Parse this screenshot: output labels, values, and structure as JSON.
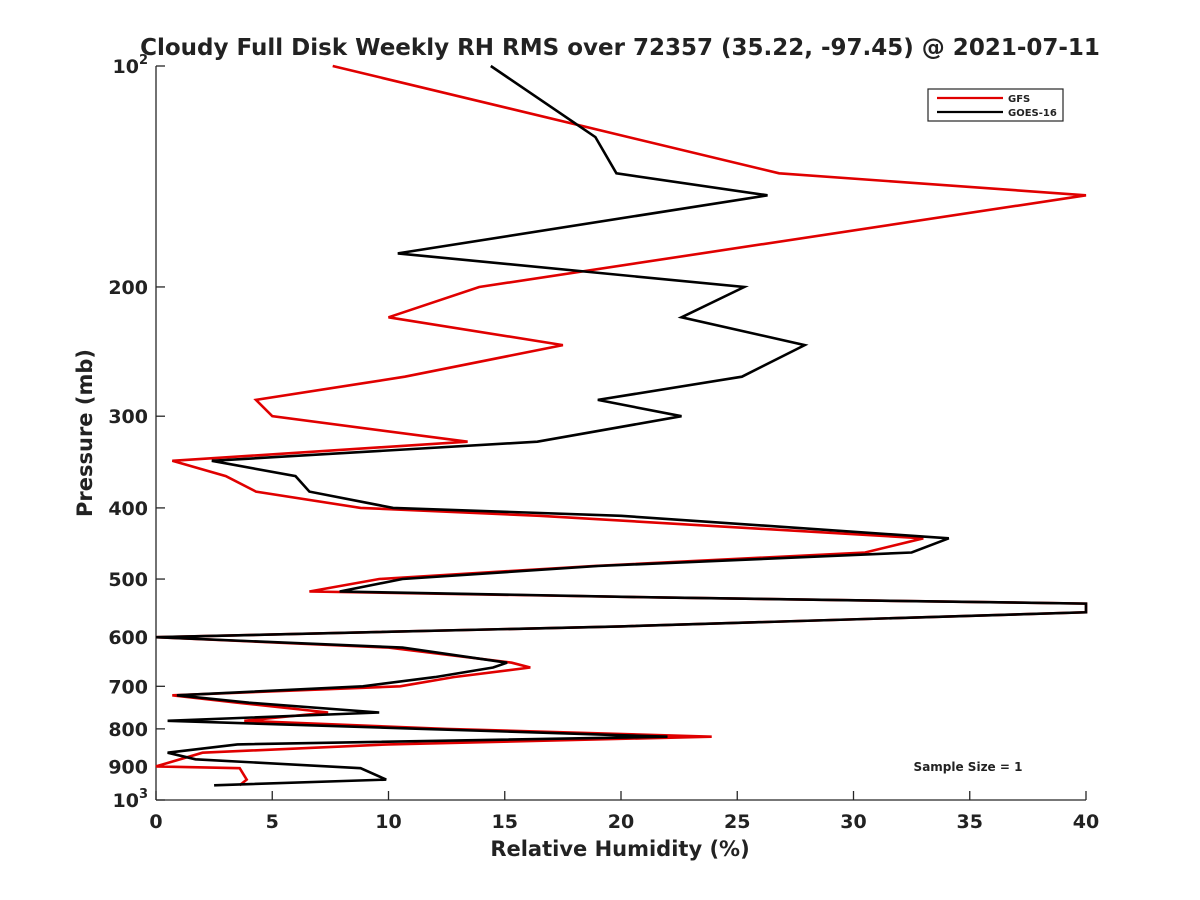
{
  "chart_data": {
    "type": "line",
    "title": "Cloudy Full Disk Weekly RH RMS over 72357 (35.22, -97.45) @ 2021-07-11",
    "xlabel": "Relative Humidity (%)",
    "ylabel": "Pressure (mb)",
    "xlim": [
      0,
      40
    ],
    "ylim": [
      100,
      1000
    ],
    "y_scale": "log",
    "y_reversed": true,
    "x_ticks": [
      "0",
      "5",
      "10",
      "15",
      "20",
      "25",
      "30",
      "35",
      "40"
    ],
    "x_tick_values": [
      0,
      5,
      10,
      15,
      20,
      25,
      30,
      35,
      40
    ],
    "y_ticks": [
      {
        "value": 100,
        "base": "10",
        "exp": "2"
      },
      {
        "value": 200,
        "base": "200",
        "exp": ""
      },
      {
        "value": 300,
        "base": "300",
        "exp": ""
      },
      {
        "value": 400,
        "base": "400",
        "exp": ""
      },
      {
        "value": 500,
        "base": "500",
        "exp": ""
      },
      {
        "value": 600,
        "base": "600",
        "exp": ""
      },
      {
        "value": 700,
        "base": "700",
        "exp": ""
      },
      {
        "value": 800,
        "base": "800",
        "exp": ""
      },
      {
        "value": 900,
        "base": "900",
        "exp": ""
      },
      {
        "value": 1000,
        "base": "10",
        "exp": "3"
      }
    ],
    "legend_position": "top-right",
    "annotation": "Sample Size = 1",
    "series": [
      {
        "name": "GFS",
        "color": "#e00000",
        "points": [
          [
            7.6,
            100
          ],
          [
            26.8,
            140
          ],
          [
            40.0,
            150
          ],
          [
            13.9,
            200
          ],
          [
            10.0,
            220
          ],
          [
            17.5,
            240
          ],
          [
            10.7,
            265
          ],
          [
            4.3,
            285
          ],
          [
            5.0,
            300
          ],
          [
            13.4,
            325
          ],
          [
            0.7,
            345
          ],
          [
            3.0,
            362
          ],
          [
            4.3,
            380
          ],
          [
            8.8,
            400
          ],
          [
            16.5,
            410
          ],
          [
            33.0,
            440
          ],
          [
            30.5,
            460
          ],
          [
            18.8,
            480
          ],
          [
            9.6,
            500
          ],
          [
            6.6,
            520
          ],
          [
            22.0,
            530
          ],
          [
            40.0,
            540
          ],
          [
            40.0,
            555
          ],
          [
            20.0,
            580
          ],
          [
            0.0,
            600
          ],
          [
            10.0,
            620
          ],
          [
            15.3,
            650
          ],
          [
            16.1,
            660
          ],
          [
            12.8,
            680
          ],
          [
            10.5,
            700
          ],
          [
            0.7,
            720
          ],
          [
            3.5,
            737
          ],
          [
            7.4,
            760
          ],
          [
            3.8,
            780
          ],
          [
            12.5,
            800
          ],
          [
            23.9,
            820
          ],
          [
            10.0,
            840
          ],
          [
            2.0,
            862
          ],
          [
            0.0,
            900
          ],
          [
            3.6,
            905
          ],
          [
            3.9,
            938
          ],
          [
            3.6,
            955
          ]
        ]
      },
      {
        "name": "GOES-16",
        "color": "#000000",
        "points": [
          [
            14.4,
            100
          ],
          [
            18.9,
            125
          ],
          [
            19.8,
            140
          ],
          [
            26.3,
            150
          ],
          [
            10.4,
            180
          ],
          [
            25.3,
            200
          ],
          [
            22.6,
            220
          ],
          [
            27.9,
            240
          ],
          [
            25.2,
            265
          ],
          [
            19.0,
            285
          ],
          [
            22.6,
            300
          ],
          [
            16.4,
            325
          ],
          [
            2.4,
            345
          ],
          [
            6.0,
            362
          ],
          [
            6.6,
            380
          ],
          [
            10.2,
            400
          ],
          [
            20.0,
            410
          ],
          [
            34.1,
            440
          ],
          [
            32.5,
            460
          ],
          [
            19.0,
            480
          ],
          [
            10.6,
            500
          ],
          [
            7.9,
            520
          ],
          [
            22.0,
            530
          ],
          [
            40.0,
            540
          ],
          [
            40.0,
            555
          ],
          [
            20.0,
            580
          ],
          [
            0.0,
            600
          ],
          [
            10.6,
            620
          ],
          [
            15.1,
            650
          ],
          [
            14.5,
            660
          ],
          [
            12.0,
            680
          ],
          [
            8.9,
            700
          ],
          [
            0.9,
            720
          ],
          [
            4.0,
            737
          ],
          [
            9.6,
            760
          ],
          [
            0.5,
            780
          ],
          [
            11.5,
            800
          ],
          [
            22.0,
            820
          ],
          [
            3.5,
            840
          ],
          [
            0.5,
            862
          ],
          [
            1.7,
            880
          ],
          [
            8.8,
            905
          ],
          [
            9.9,
            938
          ],
          [
            2.5,
            955
          ]
        ]
      }
    ]
  }
}
